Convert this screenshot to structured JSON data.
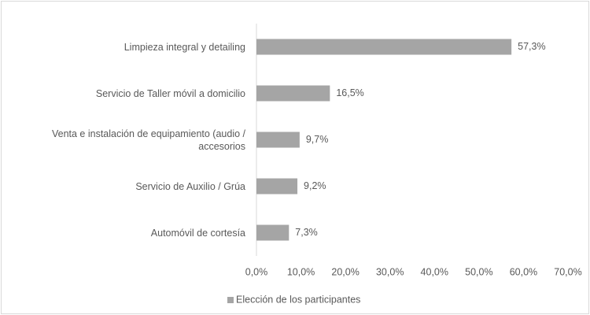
{
  "chart_data": {
    "type": "bar",
    "orientation": "horizontal",
    "categories": [
      "Limpieza integral y detailing",
      "Servicio de Taller móvil a domicilio",
      "Venta e instalación de equipamiento (audio / accesorios",
      "Servicio de Auxilio / Grúa",
      "Automóvil de cortesía"
    ],
    "series": [
      {
        "name": "Elección de los participantes",
        "color": "#a5a5a5",
        "values": [
          57.3,
          16.5,
          9.7,
          9.2,
          7.3
        ],
        "value_labels": [
          "57,3%",
          "16,5%",
          "9,7%",
          "9,2%",
          "7,3%"
        ]
      }
    ],
    "xlim": [
      0,
      70
    ],
    "xticks": [
      {
        "value": 0,
        "label": "0,0%"
      },
      {
        "value": 10,
        "label": "10,0%"
      },
      {
        "value": 20,
        "label": "20,0%"
      },
      {
        "value": 30,
        "label": "30,0%"
      },
      {
        "value": 40,
        "label": "40,0%"
      },
      {
        "value": 50,
        "label": "50,0%"
      },
      {
        "value": 60,
        "label": "60,0%"
      },
      {
        "value": 70,
        "label": "70,0%"
      }
    ],
    "legend": "bottom"
  }
}
